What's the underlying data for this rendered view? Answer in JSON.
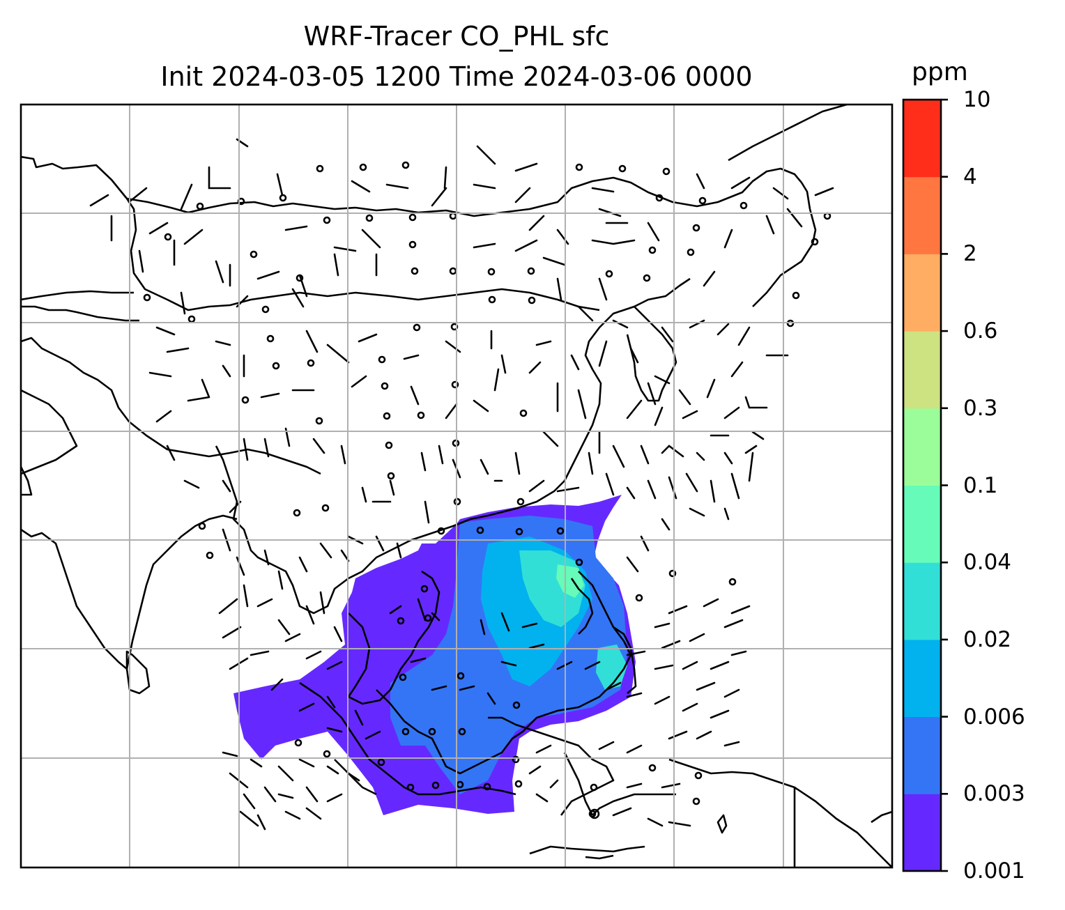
{
  "title_line1": "WRF-Tracer CO_PHL sfc",
  "title_line2": "Init 2024-03-05 1200 Time 2024-03-06 0000",
  "colorbar": {
    "unit": "ppm",
    "levels": [
      "0.001",
      "0.003",
      "0.006",
      "0.02",
      "0.04",
      "0.1",
      "0.3",
      "0.6",
      "2",
      "4",
      "10"
    ],
    "colors": [
      "#6529ff",
      "#3475f6",
      "#02b2ee",
      "#32dfd7",
      "#66fbb8",
      "#9bfd9a",
      "#cde280",
      "#fead62",
      "#ff7641",
      "#ff2e1b"
    ]
  },
  "map": {
    "region": "East and Southeast Asia",
    "field": "CO_PHL tracer surface concentration",
    "barbs": "wind barbs"
  }
}
